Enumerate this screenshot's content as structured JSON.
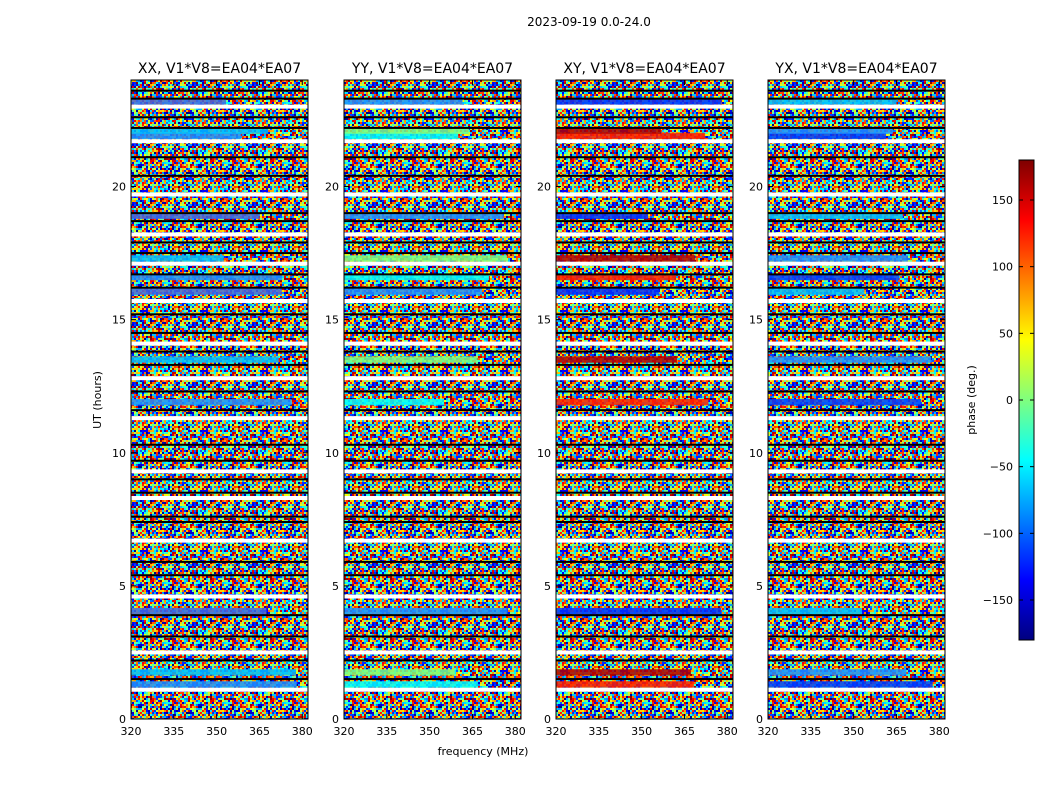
{
  "figure": {
    "suptitle": "2023-09-19 0.0-24.0"
  },
  "chart_data": {
    "type": "heatmap",
    "title": "2023-09-19 0.0-24.0",
    "xlabel": "frequency (MHz)",
    "ylabel": "UT (hours)",
    "xlim": [
      320,
      382
    ],
    "ylim": [
      0,
      24
    ],
    "x_ticks": [
      "320",
      "335",
      "350",
      "365",
      "380"
    ],
    "x_tick_values": [
      320,
      335,
      350,
      365,
      380
    ],
    "y_ticks": [
      "0",
      "5",
      "10",
      "15",
      "20"
    ],
    "y_tick_values": [
      0,
      5,
      10,
      15,
      20
    ],
    "colorbar": {
      "label": "phase (deg.)",
      "range": [
        -180,
        180
      ],
      "ticks": [
        "150",
        "100",
        "50",
        "0",
        "−50",
        "−100",
        "−150"
      ],
      "tick_values": [
        150,
        100,
        50,
        0,
        -50,
        -100,
        -150
      ],
      "colormap": "jet",
      "colors": [
        "#00007f",
        "#0000ff",
        "#007fff",
        "#00ffff",
        "#7fff7f",
        "#ffff00",
        "#ff7f00",
        "#ff0000",
        "#7f0000"
      ]
    },
    "panels": [
      {
        "title": "XX, V1*V8=EA04*EA07",
        "polarization": "XX",
        "baseline": "V1*V8=EA04*EA07"
      },
      {
        "title": "YY, V1*V8=EA04*EA07",
        "polarization": "YY",
        "baseline": "V1*V8=EA04*EA07"
      },
      {
        "title": "XY, V1*V8=EA04*EA07",
        "polarization": "XY",
        "baseline": "V1*V8=EA04*EA07"
      },
      {
        "title": "YX, V1*V8=EA04*EA07",
        "polarization": "YX",
        "baseline": "V1*V8=EA04*EA07"
      }
    ],
    "flagged_ut_hours": [
      1.1,
      1.5,
      2.2,
      2.5,
      3.1,
      3.9,
      4.6,
      5.4,
      5.9,
      6.7,
      7.4,
      7.6,
      8.3,
      8.5,
      9.0,
      9.3,
      9.7,
      10.3,
      11.3,
      11.6,
      12.3,
      12.8,
      13.3,
      13.8,
      14.1,
      14.5,
      15.2,
      15.7,
      16.2,
      16.7,
      17.1,
      17.5,
      17.9,
      18.2,
      18.7,
      19.0,
      19.7,
      20.4,
      21.1,
      21.7,
      22.2,
      22.6,
      23.0,
      23.3,
      23.6
    ]
  }
}
